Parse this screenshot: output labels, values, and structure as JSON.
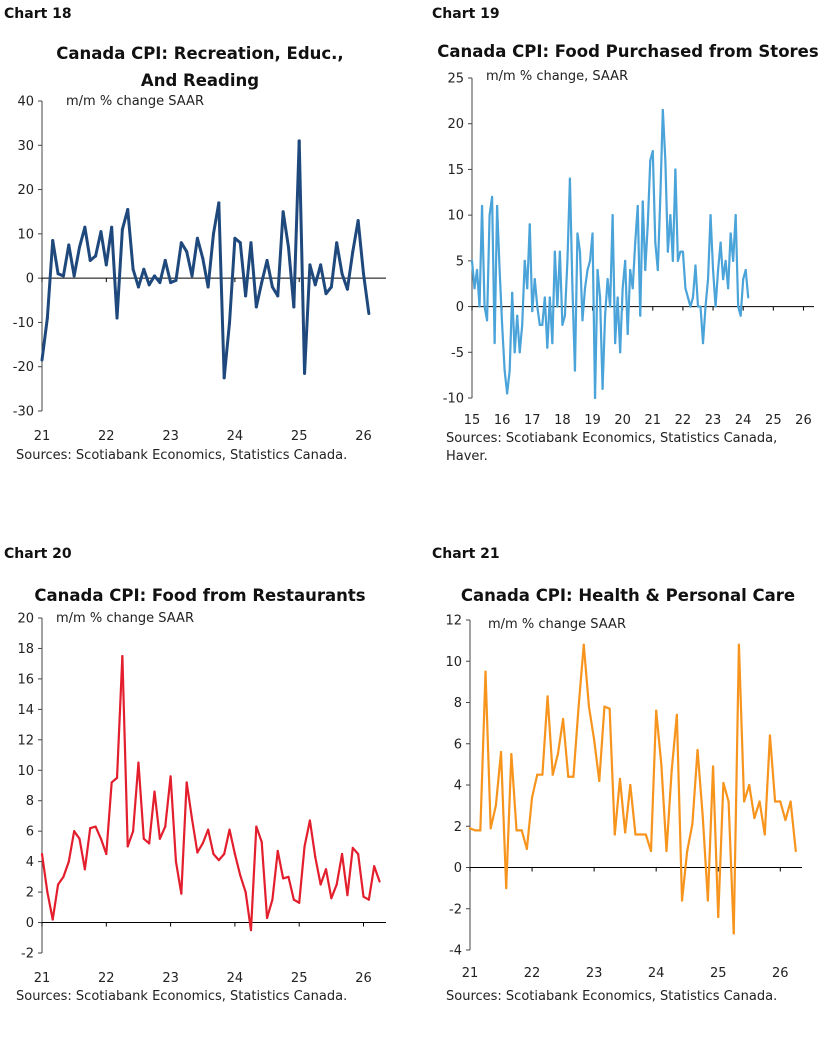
{
  "charts": [
    {
      "chart_no": "Chart 18",
      "chart_data": {
        "type": "line",
        "title_lines": [
          "Canada CPI: Recreation, Educ.,",
          "And Reading"
        ],
        "subtitle": "m/m % change SAAR",
        "color": "#1f497d",
        "ylim": [
          -30,
          40
        ],
        "yticks": [
          -30,
          -20,
          -10,
          0,
          10,
          20,
          30,
          40
        ],
        "xlim": [
          2021.0,
          2026.35
        ],
        "xticks": [
          21,
          22,
          23,
          24,
          25,
          26
        ],
        "x_start": 2021.0,
        "values": [
          -18.5,
          -9,
          8.5,
          1,
          0.5,
          7.5,
          0.5,
          7,
          11.5,
          4,
          5,
          10.5,
          3,
          11.5,
          -9,
          11,
          15.5,
          2,
          -2,
          2,
          -1.5,
          0.5,
          -1,
          4,
          -1,
          -0.5,
          8,
          6,
          0.5,
          9,
          4.5,
          -2,
          10,
          17,
          -22.5,
          -10,
          9,
          8,
          -4,
          8,
          -6.5,
          -1,
          4,
          -2,
          -4,
          15,
          7,
          -6.5,
          31,
          -21.5,
          3,
          -1.5,
          3,
          -3.5,
          -2,
          8,
          1,
          -2.5,
          6,
          13,
          1,
          -8
        ]
      },
      "source_lines": [
        "Sources: Scotiabank Economics, Statistics Canada."
      ]
    },
    {
      "chart_no": "Chart 19",
      "chart_data": {
        "type": "line",
        "title_lines": [
          "Canada CPI: Food Purchased from Stores"
        ],
        "subtitle": "m/m % change, SAAR",
        "color": "#4aa3d9",
        "ylim": [
          -10,
          25
        ],
        "yticks": [
          -10,
          -5,
          0,
          5,
          10,
          15,
          20,
          25
        ],
        "xlim": [
          2015.0,
          2026.35
        ],
        "xticks": [
          15,
          16,
          17,
          18,
          19,
          20,
          21,
          22,
          23,
          24,
          25,
          26
        ],
        "x_start": 2015.0,
        "values": [
          5,
          2,
          4,
          0,
          11,
          0,
          -1.5,
          10,
          12,
          -4,
          11,
          4,
          -2,
          -7,
          -9.5,
          -7,
          1.5,
          -5,
          -1,
          -5,
          -2,
          5,
          2,
          9,
          -0.5,
          3,
          0,
          -2,
          -2,
          1,
          -4.5,
          1,
          -4,
          6,
          0,
          6,
          -2,
          -1,
          5,
          14,
          2,
          -7,
          8,
          6,
          -1.5,
          2,
          4,
          5,
          8,
          -10,
          4,
          1,
          -9,
          -1,
          3,
          0,
          10,
          -4,
          1,
          -5,
          2,
          5,
          -3,
          4,
          2,
          7,
          11,
          -1,
          11.5,
          4,
          9,
          16,
          17,
          7,
          4,
          12,
          21.5,
          16,
          6,
          10,
          5,
          15,
          5,
          6,
          6,
          2,
          1,
          0,
          1,
          4.5,
          0,
          0,
          -4,
          0,
          3,
          10,
          4,
          0,
          4,
          7,
          3,
          5,
          2,
          8,
          5,
          10,
          0,
          -1,
          3,
          4,
          1
        ]
      },
      "source_lines": [
        "Sources: Scotiabank Economics, Statistics Canada,",
        "Haver."
      ]
    },
    {
      "chart_no": "Chart 20",
      "chart_data": {
        "type": "line",
        "title_lines": [
          "Canada CPI: Food from Restaurants"
        ],
        "subtitle": "m/m % change SAAR",
        "color": "#e31e2d",
        "ylim": [
          -2,
          20
        ],
        "yticks": [
          -2,
          0,
          2,
          4,
          6,
          8,
          10,
          12,
          14,
          16,
          18,
          20
        ],
        "xlim": [
          2021.0,
          2026.35
        ],
        "xticks": [
          21,
          22,
          23,
          24,
          25,
          26
        ],
        "x_start": 2021.0,
        "values": [
          4.5,
          2,
          0.2,
          2.5,
          3,
          4,
          6,
          5.5,
          3.5,
          6.2,
          6.3,
          5.5,
          4.5,
          9.2,
          9.5,
          17.5,
          5,
          6,
          10.5,
          5.5,
          5.2,
          8.6,
          5.5,
          6.3,
          9.6,
          4,
          1.9,
          9.2,
          6.8,
          4.6,
          5.2,
          6.1,
          4.5,
          4.1,
          4.5,
          6.1,
          4.5,
          3.1,
          2,
          -0.5,
          6.3,
          5.3,
          0.3,
          1.5,
          4.7,
          2.9,
          3,
          1.5,
          1.3,
          5,
          6.7,
          4.3,
          2.5,
          3.5,
          1.6,
          2.5,
          4.5,
          1.8,
          4.9,
          4.5,
          1.7,
          1.5,
          3.7,
          2.7
        ]
      },
      "source_lines": [
        "Sources: Scotiabank Economics, Statistics Canada."
      ]
    },
    {
      "chart_no": "Chart 21",
      "chart_data": {
        "type": "line",
        "title_lines": [
          "Canada CPI: Health & Personal Care"
        ],
        "subtitle": "m/m % change SAAR",
        "color": "#f7941d",
        "ylim": [
          -4,
          12
        ],
        "yticks": [
          -4,
          -2,
          0,
          2,
          4,
          6,
          8,
          10,
          12
        ],
        "xlim": [
          2021.0,
          2026.35
        ],
        "xticks": [
          21,
          22,
          23,
          24,
          25,
          26
        ],
        "x_start": 2021.0,
        "values": [
          1.9,
          1.8,
          1.8,
          9.5,
          1.9,
          3,
          5.6,
          -1,
          5.5,
          1.8,
          1.8,
          0.9,
          3.4,
          4.5,
          4.5,
          8.3,
          4.5,
          5.5,
          7.2,
          4.4,
          4.4,
          7.8,
          10.8,
          7.8,
          6.2,
          4.2,
          7.8,
          7.7,
          1.6,
          4.3,
          1.7,
          4,
          1.6,
          1.6,
          1.6,
          0.8,
          7.6,
          5,
          0.8,
          4.7,
          7.4,
          -1.6,
          0.8,
          2.1,
          5.7,
          2.5,
          -1.6,
          4.9,
          -2.4,
          4.1,
          3.2,
          -3.2,
          10.8,
          3.2,
          4,
          2.4,
          3.2,
          1.6,
          6.4,
          3.2,
          3.2,
          2.3,
          3.2,
          0.8
        ]
      },
      "source_lines": [
        "Sources: Scotiabank Economics, Statistics Canada."
      ]
    }
  ]
}
